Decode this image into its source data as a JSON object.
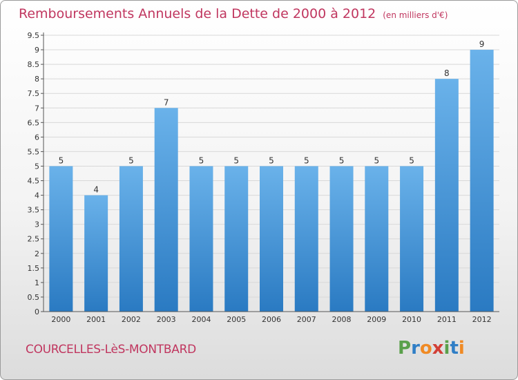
{
  "header": {
    "title": "Remboursements Annuels de la Dette de 2000 à 2012",
    "unit": "(en milliers d'€)"
  },
  "footer": {
    "place": "COURCELLES-LèS-MONTBARD",
    "logo_letters": [
      "P",
      "r",
      "o",
      "x",
      "i",
      "t",
      "i"
    ],
    "logo_colors": [
      "#5aa04b",
      "#2f7ec6",
      "#f08a24",
      "#d23f36",
      "#5aa04b",
      "#2f7ec6",
      "#f08a24"
    ]
  },
  "colors": {
    "bar_light": "#6ab2ea",
    "bar_dark": "#2a7ac2",
    "title": "#c0365f",
    "grid": "#d8d8d8"
  },
  "chart_data": {
    "type": "bar",
    "title": "Remboursements Annuels de la Dette de 2000 à 2012",
    "xlabel": "",
    "ylabel": "",
    "categories": [
      "2000",
      "2001",
      "2002",
      "2003",
      "2004",
      "2005",
      "2006",
      "2007",
      "2008",
      "2009",
      "2010",
      "2011",
      "2012"
    ],
    "values": [
      5,
      4,
      5,
      7,
      5,
      5,
      5,
      5,
      5,
      5,
      5,
      8,
      9
    ],
    "data_labels": [
      "5",
      "4",
      "5",
      "7",
      "5",
      "5",
      "5",
      "5",
      "5",
      "5",
      "5",
      "8",
      "9"
    ],
    "ylim": [
      0,
      9.5
    ],
    "yticks": [
      "0",
      "0.5",
      "1",
      "1.5",
      "2",
      "2.5",
      "3",
      "3.5",
      "4",
      "4.5",
      "5",
      "5.5",
      "6",
      "6.5",
      "7",
      "7.5",
      "8",
      "8.5",
      "9",
      "9.5"
    ],
    "grid": true,
    "legend": "none"
  }
}
